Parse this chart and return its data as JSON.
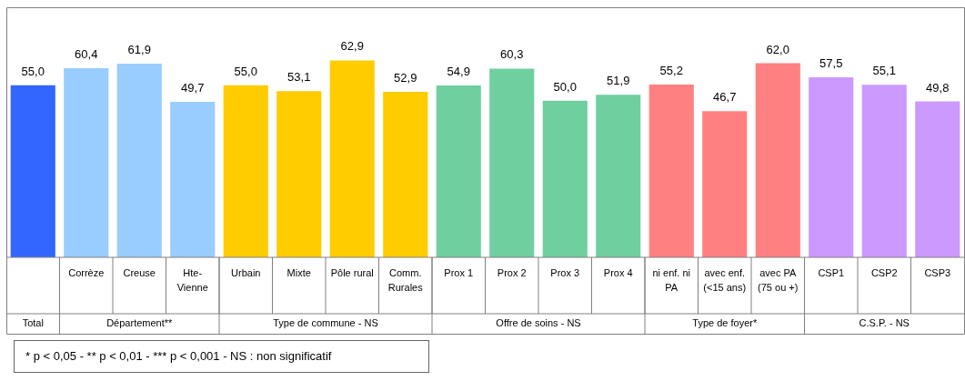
{
  "chart_data": {
    "type": "bar",
    "categories": [
      null,
      "Corrèze",
      "Creuse",
      "Hte-Vienne",
      "Urbain",
      "Mixte",
      "Pôle rural",
      "Comm. Rurales",
      "Prox 1",
      "Prox 2",
      "Prox 3",
      "Prox 4",
      "ni enf. ni PA",
      "avec enf. (<15 ans)",
      "avec PA (75 ou +)",
      "CSP1",
      "CSP2",
      "CSP3"
    ],
    "values": [
      55.0,
      60.4,
      61.9,
      49.7,
      55.0,
      53.1,
      62.9,
      52.9,
      54.9,
      60.3,
      50.0,
      51.9,
      55.2,
      46.7,
      62.0,
      57.5,
      55.1,
      49.8
    ],
    "colors": [
      "#3366ff",
      "#99ccff",
      "#99ccff",
      "#99ccff",
      "#ffcc00",
      "#ffcc00",
      "#ffcc00",
      "#ffcc00",
      "#6fcf9f",
      "#6fcf9f",
      "#6fcf9f",
      "#6fcf9f",
      "#ff8080",
      "#ff8080",
      "#ff8080",
      "#cc99ff",
      "#cc99ff",
      "#cc99ff"
    ],
    "value_labels": [
      "55,0",
      "60,4",
      "61,9",
      "49,7",
      "55,0",
      "53,1",
      "62,9",
      "52,9",
      "54,9",
      "60,3",
      "50,0",
      "51,9",
      "55,2",
      "46,7",
      "62,0",
      "57,5",
      "55,1",
      "49,8"
    ],
    "annotations": [
      "Total",
      "Département**",
      "Type de commune - NS",
      "Offre de soins - NS",
      "Type de foyer*",
      "C.S.P. - NS",
      "* p < 0,05 - ** p < 0,01 - *** p < 0,001 - NS : non significatif"
    ]
  }
}
